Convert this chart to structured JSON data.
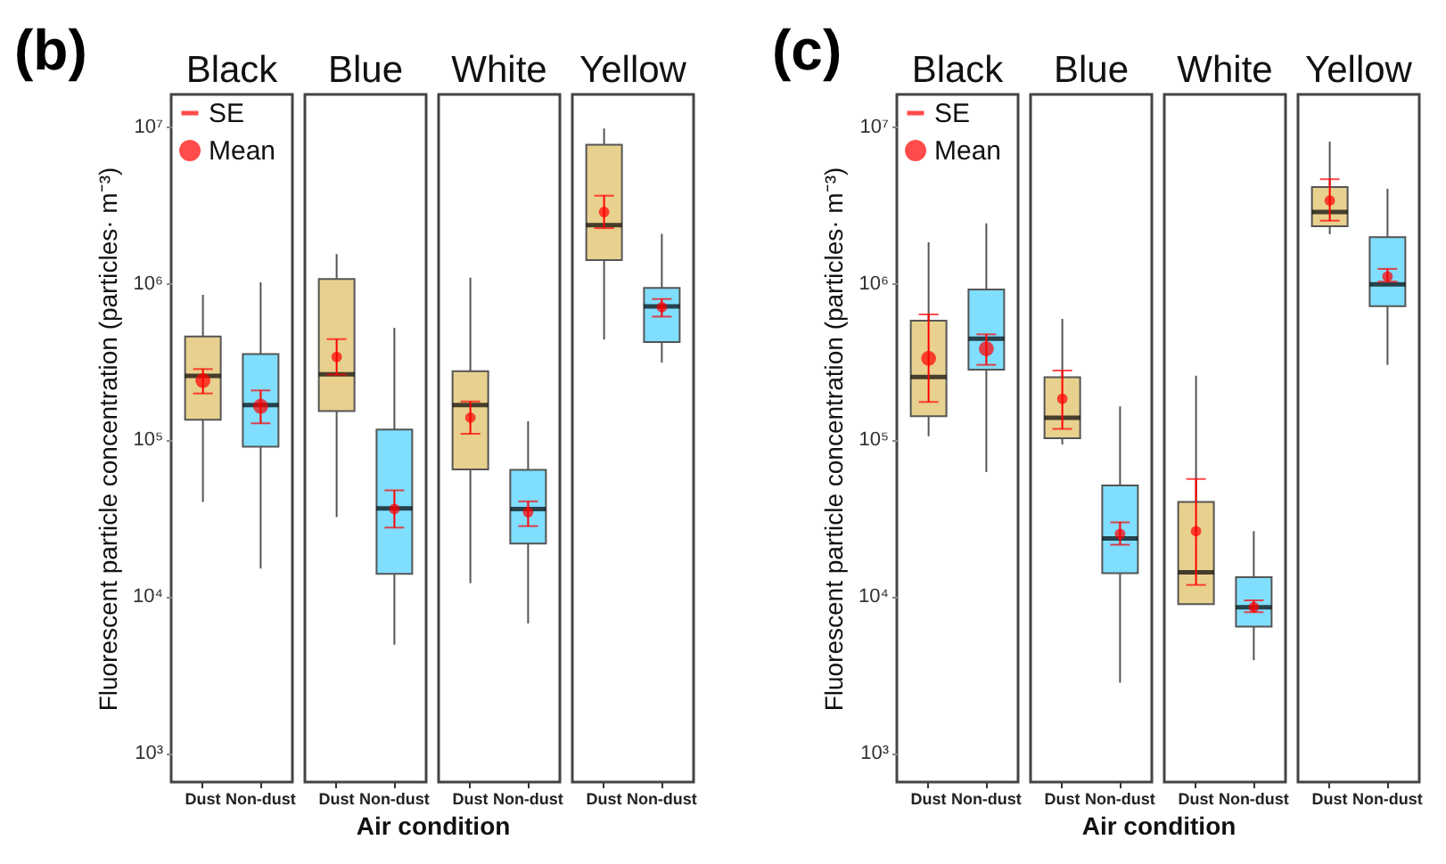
{
  "chart_data": [
    {
      "type": "box",
      "title": "Black",
      "annotations": [
        "(b)"
      ],
      "ylabel": "Fluorescent particle concentration (particles· m⁻³)",
      "categories": [
        "Dust",
        "Non-dust"
      ],
      "log": true,
      "ylim": [
        650,
        16000000
      ],
      "yticks": [
        {
          "value": 1000,
          "label": "10³"
        },
        {
          "value": 10000,
          "label": "10⁴"
        },
        {
          "value": 100000,
          "label": "10⁵"
        },
        {
          "value": 1000000,
          "label": "10⁶"
        },
        {
          "value": 10000000,
          "label": "10⁷"
        }
      ],
      "legend": "top left",
      "series": [
        {
          "type": "box",
          "colors": [
            "#e8d08f",
            "#80deff"
          ],
          "boxes": [
            {
              "low": 40000,
              "q1": 134000,
              "median": 255000,
              "q3": 455000,
              "high": 840000
            },
            {
              "low": 15000,
              "q1": 90000,
              "median": 166000,
              "q3": 352000,
              "high": 1010000
            }
          ]
        },
        {
          "type": "scatter",
          "name": "SE",
          "color": "#ff0000",
          "marker": "none",
          "values": [
            null,
            null
          ]
        },
        {
          "type": "scatter",
          "name": "Mean",
          "color": "#ff0000",
          "marker": "circle",
          "x": [
            "Dust",
            "Non-dust"
          ],
          "values": [
            238000,
            163000
          ],
          "errors": [
            [
              197000,
              282000
            ],
            [
              127000,
              206000
            ]
          ]
        }
      ]
    },
    {
      "type": "box",
      "title": "Blue",
      "xlabel": "Air condition",
      "categories": [
        "Dust",
        "Non-dust"
      ],
      "log": true,
      "ylim": [
        650,
        16000000
      ],
      "tick_labels": "x",
      "series": [
        {
          "type": "box",
          "colors": [
            "#e8d08f",
            "#80deff"
          ],
          "boxes": [
            {
              "low": 32000,
              "q1": 152000,
              "median": 261000,
              "q3": 1060000,
              "high": 1530000
            },
            {
              "low": 4900,
              "q1": 13900,
              "median": 36400,
              "q3": 116000,
              "high": 517000
            }
          ]
        },
        {
          "type": "scatter",
          "color": "#ff0000",
          "marker": "circle",
          "x": [
            "Dust",
            "Non-dust"
          ],
          "values": [
            337000,
            36000
          ],
          "errors": [
            [
              260000,
              438000
            ],
            [
              27400,
              47400
            ]
          ]
        }
      ]
    },
    {
      "type": "box",
      "title": "White",
      "categories": [
        "Dust",
        "Non-dust"
      ],
      "log": true,
      "ylim": [
        650,
        16000000
      ],
      "tick_labels": "x",
      "series": [
        {
          "type": "box",
          "colors": [
            "#e8d08f",
            "#80deff"
          ],
          "boxes": [
            {
              "low": 12100,
              "q1": 64400,
              "median": 166000,
              "q3": 273000,
              "high": 1080000
            },
            {
              "low": 6700,
              "q1": 21700,
              "median": 36000,
              "q3": 64000,
              "high": 131000
            }
          ]
        },
        {
          "type": "scatter",
          "color": "#ff0000",
          "marker": "circle",
          "x": [
            "Dust",
            "Non-dust"
          ],
          "values": [
            138000,
            34400
          ],
          "errors": [
            [
              109000,
              175000
            ],
            [
              28000,
              40300
            ]
          ]
        }
      ]
    },
    {
      "type": "box",
      "title": "Yellow",
      "categories": [
        "Dust",
        "Non-dust"
      ],
      "log": true,
      "ylim": [
        650,
        16000000
      ],
      "tick_labels": "x",
      "series": [
        {
          "type": "box",
          "colors": [
            "#e8d08f",
            "#80deff"
          ],
          "boxes": [
            {
              "low": 435000,
              "q1": 1400000,
              "median": 2340000,
              "q3": 7640000,
              "high": 9700000
            },
            {
              "low": 310000,
              "q1": 420000,
              "median": 708000,
              "q3": 930000,
              "high": 2060000
            }
          ]
        },
        {
          "type": "scatter",
          "color": "#ff0000",
          "marker": "circle",
          "x": [
            "Dust",
            "Non-dust"
          ],
          "values": [
            2840000,
            700000
          ],
          "errors": [
            [
              2240000,
              3610000
            ],
            [
              610000,
              790000
            ]
          ]
        }
      ]
    },
    {
      "type": "box",
      "title": "Black",
      "annotations": [
        "(c)"
      ],
      "ylabel": "Fluorescent particle concentration (particles· m⁻³)",
      "categories": [
        "Dust",
        "Non-dust"
      ],
      "log": true,
      "ylim": [
        650,
        16000000
      ],
      "yticks": [
        {
          "value": 1000,
          "label": "10³"
        },
        {
          "value": 10000,
          "label": "10⁴"
        },
        {
          "value": 100000,
          "label": "10⁵"
        },
        {
          "value": 1000000,
          "label": "10⁶"
        },
        {
          "value": 10000000,
          "label": "10⁷"
        }
      ],
      "legend": "top left",
      "series": [
        {
          "type": "box",
          "colors": [
            "#e8d08f",
            "#80deff"
          ],
          "boxes": [
            {
              "low": 105000,
              "q1": 141000,
              "median": 251000,
              "q3": 575000,
              "high": 1820000
            },
            {
              "low": 62000,
              "q1": 280000,
              "median": 440000,
              "q3": 910000,
              "high": 2400000
            }
          ]
        },
        {
          "type": "scatter",
          "name": "SE",
          "color": "#ff0000",
          "marker": "none",
          "values": [
            null,
            null
          ]
        },
        {
          "type": "scatter",
          "name": "Mean",
          "color": "#ff0000",
          "marker": "circle",
          "x": [
            "Dust",
            "Non-dust"
          ],
          "values": [
            330000,
            380000
          ],
          "errors": [
            [
              174000,
              630000
            ],
            [
              300000,
              470000
            ]
          ]
        }
      ]
    },
    {
      "type": "box",
      "title": "Blue",
      "xlabel": "Air condition",
      "categories": [
        "Dust",
        "Non-dust"
      ],
      "log": true,
      "ylim": [
        650,
        16000000
      ],
      "tick_labels": "x",
      "series": [
        {
          "type": "box",
          "colors": [
            "#e8d08f",
            "#80deff"
          ],
          "boxes": [
            {
              "low": 93000,
              "q1": 102000,
              "median": 138000,
              "q3": 250000,
              "high": 590000
            },
            {
              "low": 2800,
              "q1": 14000,
              "median": 23400,
              "q3": 51000,
              "high": 163000
            }
          ]
        },
        {
          "type": "scatter",
          "color": "#ff0000",
          "marker": "circle",
          "x": [
            "Dust",
            "Non-dust"
          ],
          "values": [
            182000,
            25000
          ],
          "errors": [
            [
              117000,
              276000
            ],
            [
              21300,
              29600
            ]
          ]
        }
      ]
    },
    {
      "type": "box",
      "title": "White",
      "categories": [
        "Dust",
        "Non-dust"
      ],
      "log": true,
      "ylim": [
        650,
        16000000
      ],
      "tick_labels": "x",
      "series": [
        {
          "type": "box",
          "colors": [
            "#e8d08f",
            "#80deff"
          ],
          "boxes": [
            {
              "low": 8800,
              "q1": 8900,
              "median": 14200,
              "q3": 40000,
              "high": 256000
            },
            {
              "low": 3900,
              "q1": 6400,
              "median": 8500,
              "q3": 13200,
              "high": 26000
            }
          ]
        },
        {
          "type": "scatter",
          "color": "#ff0000",
          "marker": "circle",
          "x": [
            "Dust",
            "Non-dust"
          ],
          "values": [
            26000,
            8500
          ],
          "errors": [
            [
              11800,
              56000
            ],
            [
              7900,
              9400
            ]
          ]
        }
      ]
    },
    {
      "type": "box",
      "title": "Yellow",
      "categories": [
        "Dust",
        "Non-dust"
      ],
      "log": true,
      "ylim": [
        650,
        16000000
      ],
      "tick_labels": "x",
      "series": [
        {
          "type": "box",
          "colors": [
            "#e8d08f",
            "#80deff"
          ],
          "boxes": [
            {
              "low": 2050000,
              "q1": 2300000,
              "median": 2840000,
              "q3": 4100000,
              "high": 8000000
            },
            {
              "low": 300000,
              "q1": 710000,
              "median": 980000,
              "q3": 1960000,
              "high": 4000000
            }
          ]
        },
        {
          "type": "scatter",
          "color": "#ff0000",
          "marker": "circle",
          "x": [
            "Dust",
            "Non-dust"
          ],
          "values": [
            3360000,
            1100000
          ],
          "errors": [
            [
              2500000,
              4600000
            ],
            [
              1020000,
              1230000
            ]
          ]
        }
      ]
    }
  ]
}
